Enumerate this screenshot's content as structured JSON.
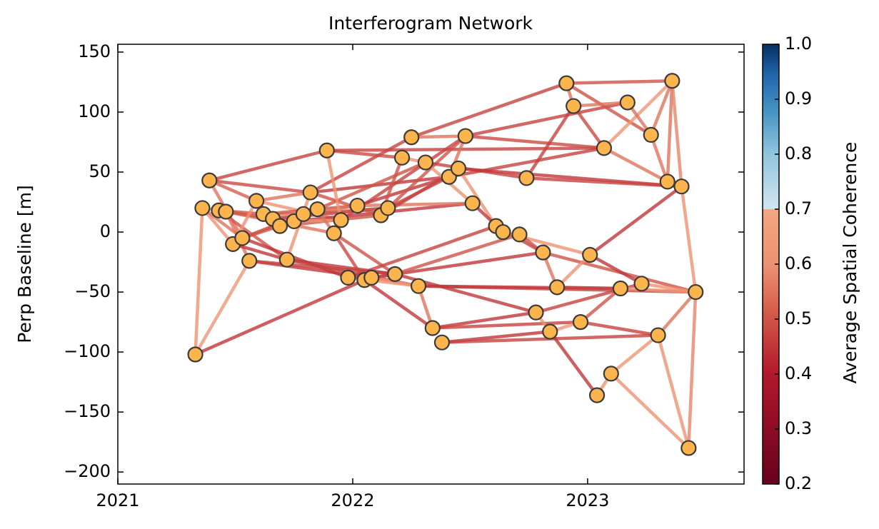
{
  "chart_data": {
    "type": "network",
    "title": "Interferogram Network",
    "ylabel": "Perp Baseline [m]",
    "colorbar_label": "Average Spatial Coherence",
    "xlim": [
      2021.0,
      2023.666
    ],
    "xticks": [
      2021,
      2022,
      2023
    ],
    "ylim": [
      -210,
      156.5
    ],
    "yticks": [
      150,
      100,
      50,
      0,
      {
        "value": -50,
        "label": "−50"
      },
      {
        "value": -100,
        "label": "−100"
      },
      {
        "value": -150,
        "label": "−150"
      },
      {
        "value": -200,
        "label": "−200"
      }
    ],
    "clim": [
      0.2,
      1.0
    ],
    "cticks": [
      0.2,
      0.3,
      0.4,
      0.5,
      0.6,
      0.7,
      0.8,
      0.9,
      {
        "value": 1.0,
        "label": "1.0"
      }
    ],
    "node_color": "#fbb54c",
    "node_edge_color": "#3a3a3a",
    "nodes": {
      "x": [
        2021.33,
        2021.36,
        2021.39,
        2021.43,
        2021.46,
        2021.49,
        2021.53,
        2021.56,
        2021.59,
        2021.62,
        2021.66,
        2021.69,
        2021.72,
        2021.75,
        2021.79,
        2021.82,
        2021.85,
        2021.89,
        2021.92,
        2021.95,
        2021.98,
        2022.02,
        2022.05,
        2022.08,
        2022.12,
        2022.15,
        2022.18,
        2022.21,
        2022.25,
        2022.28,
        2022.31,
        2022.34,
        2022.38,
        2022.41,
        2022.45,
        2022.48,
        2022.51,
        2022.61,
        2022.64,
        2022.71,
        2022.74,
        2022.78,
        2022.81,
        2022.84,
        2022.87,
        2022.91,
        2022.94,
        2022.97,
        2023.01,
        2023.04,
        2023.07,
        2023.1,
        2023.14,
        2023.17,
        2023.23,
        2023.27,
        2023.3,
        2023.34,
        2023.36,
        2023.4,
        2023.43,
        2023.46
      ],
      "y": [
        -102,
        20,
        43,
        18,
        17,
        -10,
        -5,
        -24,
        26,
        15,
        11,
        5,
        -23,
        9,
        15,
        33,
        19,
        68,
        -1,
        10,
        -38,
        22,
        -40,
        -38,
        14,
        20,
        -35,
        62,
        79,
        -45,
        58,
        -80,
        -92,
        46,
        53,
        80,
        24,
        5,
        0,
        -2,
        45,
        -67,
        -17,
        -83,
        -46,
        124,
        105,
        -75,
        -19,
        -136,
        70,
        -118,
        -47,
        108,
        -43,
        81,
        -86,
        42,
        126,
        38,
        -180,
        -50
      ]
    },
    "edges": [
      {
        "from": 0,
        "to": 1,
        "coherence": 0.6
      },
      {
        "from": 0,
        "to": 7,
        "coherence": 0.62
      },
      {
        "from": 0,
        "to": 22,
        "coherence": 0.45
      },
      {
        "from": 1,
        "to": 3,
        "coherence": 0.6
      },
      {
        "from": 1,
        "to": 5,
        "coherence": 0.6
      },
      {
        "from": 1,
        "to": 6,
        "coherence": 0.55
      },
      {
        "from": 2,
        "to": 15,
        "coherence": 0.48
      },
      {
        "from": 2,
        "to": 17,
        "coherence": 0.47
      },
      {
        "from": 2,
        "to": 8,
        "coherence": 0.52
      },
      {
        "from": 2,
        "to": 6,
        "coherence": 0.55
      },
      {
        "from": 3,
        "to": 9,
        "coherence": 0.5
      },
      {
        "from": 3,
        "to": 4,
        "coherence": 0.58
      },
      {
        "from": 3,
        "to": 12,
        "coherence": 0.5
      },
      {
        "from": 4,
        "to": 18,
        "coherence": 0.55
      },
      {
        "from": 4,
        "to": 10,
        "coherence": 0.5
      },
      {
        "from": 4,
        "to": 7,
        "coherence": 0.55
      },
      {
        "from": 5,
        "to": 12,
        "coherence": 0.45
      },
      {
        "from": 5,
        "to": 8,
        "coherence": 0.6
      },
      {
        "from": 6,
        "to": 16,
        "coherence": 0.5
      },
      {
        "from": 6,
        "to": 14,
        "coherence": 0.52
      },
      {
        "from": 6,
        "to": 20,
        "coherence": 0.45
      },
      {
        "from": 6,
        "to": 11,
        "coherence": 0.5
      },
      {
        "from": 7,
        "to": 23,
        "coherence": 0.45
      },
      {
        "from": 7,
        "to": 26,
        "coherence": 0.47
      },
      {
        "from": 8,
        "to": 15,
        "coherence": 0.55
      },
      {
        "from": 8,
        "to": 19,
        "coherence": 0.6
      },
      {
        "from": 8,
        "to": 11,
        "coherence": 0.48
      },
      {
        "from": 9,
        "to": 14,
        "coherence": 0.55
      },
      {
        "from": 9,
        "to": 13,
        "coherence": 0.6
      },
      {
        "from": 9,
        "to": 21,
        "coherence": 0.5
      },
      {
        "from": 10,
        "to": 16,
        "coherence": 0.6
      },
      {
        "from": 10,
        "to": 25,
        "coherence": 0.47
      },
      {
        "from": 11,
        "to": 24,
        "coherence": 0.5
      },
      {
        "from": 11,
        "to": 13,
        "coherence": 0.55
      },
      {
        "from": 12,
        "to": 15,
        "coherence": 0.6
      },
      {
        "from": 12,
        "to": 26,
        "coherence": 0.45
      },
      {
        "from": 12,
        "to": 29,
        "coherence": 0.47
      },
      {
        "from": 13,
        "to": 36,
        "coherence": 0.45
      },
      {
        "from": 13,
        "to": 19,
        "coherence": 0.6
      },
      {
        "from": 14,
        "to": 21,
        "coherence": 0.55
      },
      {
        "from": 14,
        "to": 25,
        "coherence": 0.5
      },
      {
        "from": 15,
        "to": 33,
        "coherence": 0.45
      },
      {
        "from": 15,
        "to": 28,
        "coherence": 0.47
      },
      {
        "from": 15,
        "to": 24,
        "coherence": 0.5
      },
      {
        "from": 16,
        "to": 18,
        "coherence": 0.55
      },
      {
        "from": 16,
        "to": 30,
        "coherence": 0.5
      },
      {
        "from": 17,
        "to": 27,
        "coherence": 0.48
      },
      {
        "from": 17,
        "to": 19,
        "coherence": 0.6
      },
      {
        "from": 17,
        "to": 50,
        "coherence": 0.47
      },
      {
        "from": 18,
        "to": 26,
        "coherence": 0.5
      },
      {
        "from": 18,
        "to": 22,
        "coherence": 0.48
      },
      {
        "from": 19,
        "to": 35,
        "coherence": 0.47
      },
      {
        "from": 20,
        "to": 29,
        "coherence": 0.6
      },
      {
        "from": 20,
        "to": 23,
        "coherence": 0.5
      },
      {
        "from": 20,
        "to": 37,
        "coherence": 0.47
      },
      {
        "from": 21,
        "to": 33,
        "coherence": 0.45
      },
      {
        "from": 21,
        "to": 36,
        "coherence": 0.55
      },
      {
        "from": 22,
        "to": 31,
        "coherence": 0.45
      },
      {
        "from": 22,
        "to": 26,
        "coherence": 0.55
      },
      {
        "from": 23,
        "to": 29,
        "coherence": 0.6
      },
      {
        "from": 23,
        "to": 42,
        "coherence": 0.45
      },
      {
        "from": 24,
        "to": 34,
        "coherence": 0.47
      },
      {
        "from": 24,
        "to": 27,
        "coherence": 0.5
      },
      {
        "from": 25,
        "to": 35,
        "coherence": 0.5
      },
      {
        "from": 25,
        "to": 33,
        "coherence": 0.47
      },
      {
        "from": 26,
        "to": 41,
        "coherence": 0.45
      },
      {
        "from": 26,
        "to": 39,
        "coherence": 0.5
      },
      {
        "from": 27,
        "to": 30,
        "coherence": 0.6
      },
      {
        "from": 28,
        "to": 45,
        "coherence": 0.47
      },
      {
        "from": 28,
        "to": 35,
        "coherence": 0.55
      },
      {
        "from": 29,
        "to": 61,
        "coherence": 0.47
      },
      {
        "from": 29,
        "to": 31,
        "coherence": 0.55
      },
      {
        "from": 29,
        "to": 52,
        "coherence": 0.45
      },
      {
        "from": 30,
        "to": 40,
        "coherence": 0.47
      },
      {
        "from": 30,
        "to": 36,
        "coherence": 0.6
      },
      {
        "from": 31,
        "to": 41,
        "coherence": 0.45
      },
      {
        "from": 31,
        "to": 47,
        "coherence": 0.47
      },
      {
        "from": 32,
        "to": 43,
        "coherence": 0.45
      },
      {
        "from": 32,
        "to": 56,
        "coherence": 0.47
      },
      {
        "from": 33,
        "to": 35,
        "coherence": 0.55
      },
      {
        "from": 33,
        "to": 50,
        "coherence": 0.47
      },
      {
        "from": 34,
        "to": 59,
        "coherence": 0.45
      },
      {
        "from": 34,
        "to": 37,
        "coherence": 0.6
      },
      {
        "from": 35,
        "to": 53,
        "coherence": 0.47
      },
      {
        "from": 35,
        "to": 50,
        "coherence": 0.48
      },
      {
        "from": 36,
        "to": 38,
        "coherence": 0.45
      },
      {
        "from": 37,
        "to": 42,
        "coherence": 0.47
      },
      {
        "from": 37,
        "to": 38,
        "coherence": 0.55
      },
      {
        "from": 38,
        "to": 48,
        "coherence": 0.6
      },
      {
        "from": 39,
        "to": 42,
        "coherence": 0.5
      },
      {
        "from": 40,
        "to": 46,
        "coherence": 0.47
      },
      {
        "from": 40,
        "to": 59,
        "coherence": 0.47
      },
      {
        "from": 41,
        "to": 43,
        "coherence": 0.6
      },
      {
        "from": 41,
        "to": 54,
        "coherence": 0.47
      },
      {
        "from": 42,
        "to": 44,
        "coherence": 0.55
      },
      {
        "from": 42,
        "to": 61,
        "coherence": 0.5
      },
      {
        "from": 43,
        "to": 47,
        "coherence": 0.62
      },
      {
        "from": 43,
        "to": 49,
        "coherence": 0.45
      },
      {
        "from": 44,
        "to": 48,
        "coherence": 0.6
      },
      {
        "from": 44,
        "to": 52,
        "coherence": 0.47
      },
      {
        "from": 45,
        "to": 58,
        "coherence": 0.5
      },
      {
        "from": 45,
        "to": 46,
        "coherence": 0.55
      },
      {
        "from": 45,
        "to": 55,
        "coherence": 0.5
      },
      {
        "from": 46,
        "to": 53,
        "coherence": 0.55
      },
      {
        "from": 46,
        "to": 50,
        "coherence": 0.48
      },
      {
        "from": 47,
        "to": 56,
        "coherence": 0.47
      },
      {
        "from": 47,
        "to": 52,
        "coherence": 0.5
      },
      {
        "from": 48,
        "to": 54,
        "coherence": 0.45
      },
      {
        "from": 48,
        "to": 59,
        "coherence": 0.45
      },
      {
        "from": 49,
        "to": 51,
        "coherence": 0.6
      },
      {
        "from": 50,
        "to": 57,
        "coherence": 0.55
      },
      {
        "from": 50,
        "to": 58,
        "coherence": 0.62
      },
      {
        "from": 51,
        "to": 60,
        "coherence": 0.6
      },
      {
        "from": 51,
        "to": 56,
        "coherence": 0.62
      },
      {
        "from": 52,
        "to": 61,
        "coherence": 0.62
      },
      {
        "from": 53,
        "to": 55,
        "coherence": 0.55
      },
      {
        "from": 54,
        "to": 61,
        "coherence": 0.6
      },
      {
        "from": 55,
        "to": 57,
        "coherence": 0.55
      },
      {
        "from": 55,
        "to": 58,
        "coherence": 0.55
      },
      {
        "from": 56,
        "to": 61,
        "coherence": 0.55
      },
      {
        "from": 56,
        "to": 60,
        "coherence": 0.6
      },
      {
        "from": 57,
        "to": 58,
        "coherence": 0.55
      },
      {
        "from": 58,
        "to": 59,
        "coherence": 0.58
      },
      {
        "from": 59,
        "to": 61,
        "coherence": 0.6
      },
      {
        "from": 61,
        "to": 60,
        "coherence": 0.58
      }
    ]
  }
}
